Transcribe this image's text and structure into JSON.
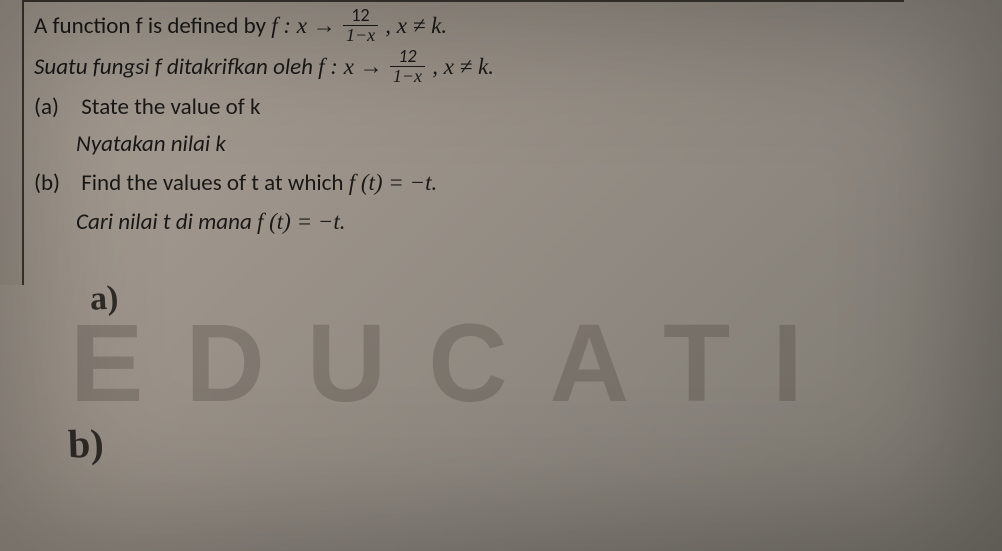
{
  "question": {
    "line1_en_pre": "A function f is defined by ",
    "line1_map": "f : x →",
    "frac_num": "12",
    "frac_den": "1−x",
    "cond": ", x ≠ k.",
    "line2_ms_pre": "Suatu fungsi f ditakrifkan oleh ",
    "partA_label": "(a)",
    "partA_en": "State the value of k",
    "partA_ms": "Nyatakan nilai k",
    "partB_label": "(b)",
    "partB_en_pre": "Find the values of t at which ",
    "partB_eq": "f (t) = −t.",
    "partB_ms_pre": "Cari nilai t di mana ",
    "partB_ms_eq": "f (t) = −t."
  },
  "handwriting": {
    "a": "a)",
    "b": "b)"
  },
  "watermark": {
    "text": "EDUCATI"
  },
  "colors": {
    "text": "#1a1816",
    "border": "#3a362f",
    "watermark": "rgba(60,55,48,0.26)"
  }
}
